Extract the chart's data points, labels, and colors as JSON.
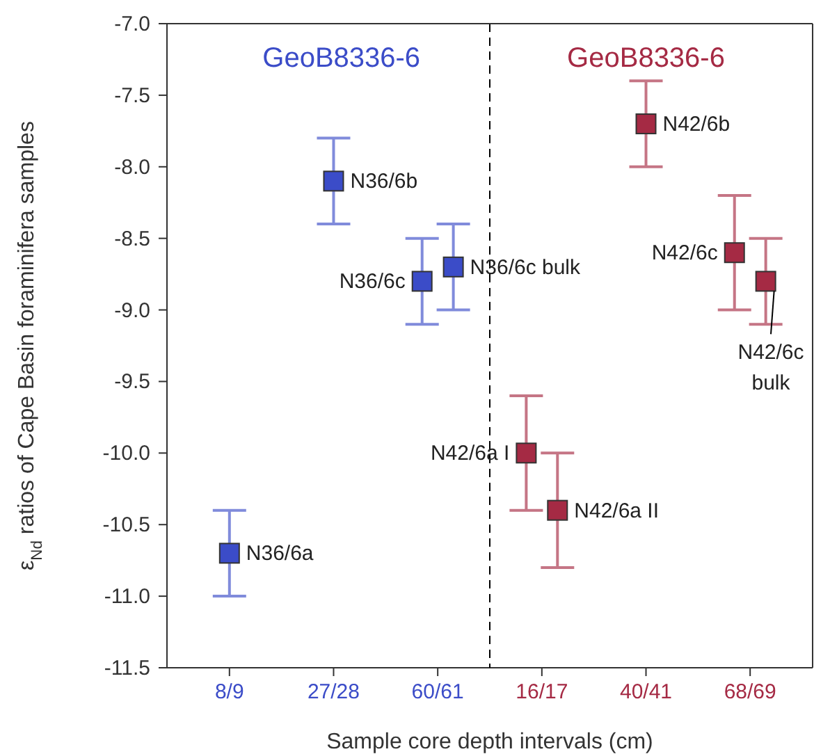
{
  "chart_data": {
    "type": "scatter",
    "marker": "square",
    "xlabel": "Sample core depth intervals (cm)",
    "ylabel": "ε$_{Nd}$ ratios of Cape Basin foraminifera samples",
    "categories": [
      "8/9",
      "27/28",
      "60/61",
      "16/17",
      "40/41",
      "68/69"
    ],
    "ylim": [
      -11.5,
      -7
    ],
    "yticks": [
      {
        "value": -11.5,
        "label": "-11.5"
      },
      {
        "value": -11,
        "label": "-11.0"
      },
      {
        "value": -10.5,
        "label": "-10.5"
      },
      {
        "value": -10,
        "label": "-10.0"
      },
      {
        "value": -9.5,
        "label": "-9.5"
      },
      {
        "value": -9,
        "label": "-9.0"
      },
      {
        "value": -8.5,
        "label": "-8.5"
      },
      {
        "value": -8,
        "label": "-8.0"
      },
      {
        "value": -7.5,
        "label": "-7.5"
      },
      {
        "value": -7,
        "label": "-7.0"
      }
    ],
    "series": [
      {
        "name": "GeoB8336-6",
        "color": "#3b4cc8",
        "x": [
          "8/9",
          "27/28",
          "60/61",
          "60/61"
        ],
        "values": [
          -10.7,
          -8.1,
          -8.8,
          -8.7
        ],
        "errors": [
          0.3,
          0.3,
          0.3,
          0.3
        ],
        "value_labels": [
          "N36/6a",
          "N36/6b",
          "N36/6c",
          "N36/6c bulk"
        ]
      },
      {
        "name": "GeoB8336-6",
        "color": "#a52a44",
        "x": [
          "16/17",
          "16/17",
          "40/41",
          "68/69",
          "68/69"
        ],
        "values": [
          -10.0,
          -10.4,
          -7.7,
          -8.6,
          -8.8
        ],
        "errors": [
          0.4,
          0.4,
          0.3,
          0.4,
          0.3
        ],
        "value_labels": [
          "N42/6a I",
          "N42/6a II",
          "N42/6b",
          "N42/6c",
          "N42/6c bulk"
        ]
      }
    ]
  }
}
